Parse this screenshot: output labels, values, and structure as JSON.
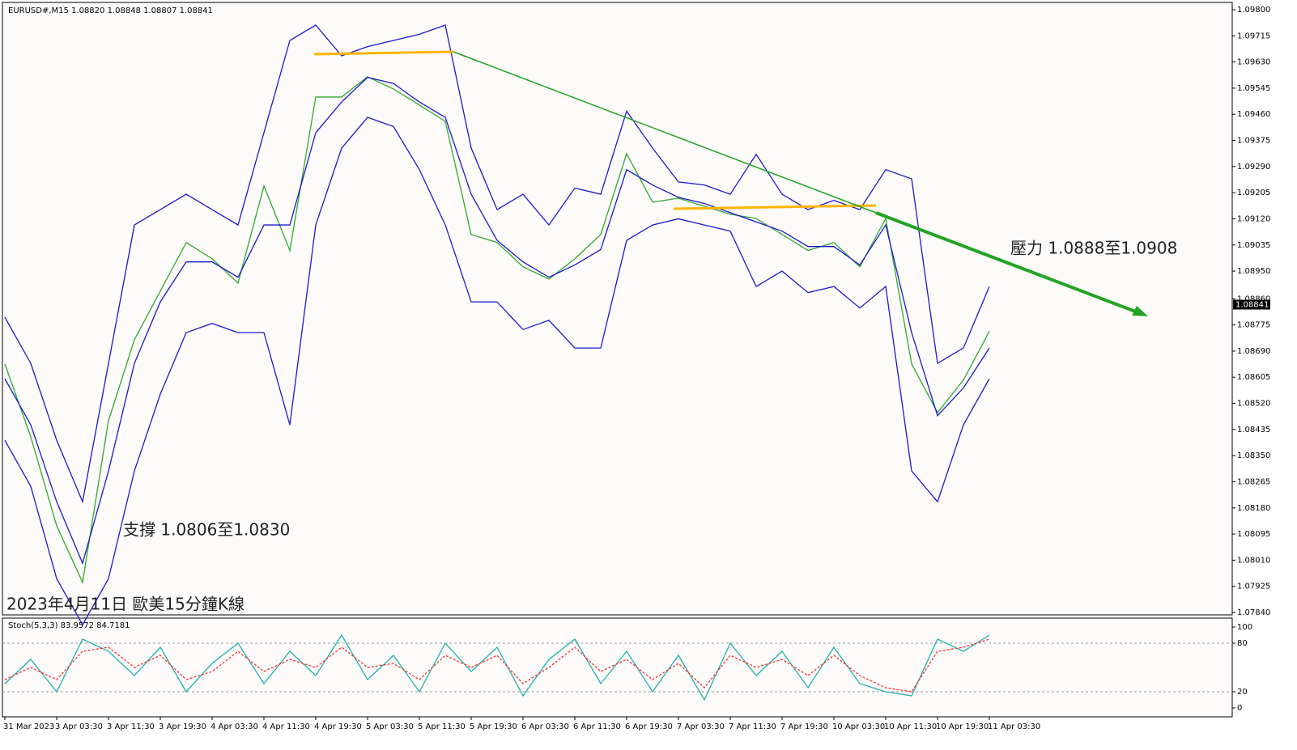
{
  "chart_data": [
    {
      "type": "line",
      "title": "EURUSD#,M15  1.08820 1.08848 1.08807 1.08841",
      "x": [
        0,
        16,
        32,
        48,
        64,
        80,
        96,
        112,
        128,
        144,
        160,
        176,
        192,
        208,
        224,
        240,
        256,
        272,
        288,
        304,
        320,
        336,
        352,
        368,
        384,
        400,
        416,
        432,
        448,
        464,
        480,
        496,
        512,
        528,
        544,
        560,
        576,
        592,
        608
      ],
      "xlim": [
        0,
        758
      ],
      "xticks": [
        {
          "value": 0,
          "label": "31 Mar 2023"
        },
        {
          "value": 32,
          "label": "3 Apr 03:30"
        },
        {
          "value": 64,
          "label": "3 Apr 11:30"
        },
        {
          "value": 96,
          "label": "3 Apr 19:30"
        },
        {
          "value": 128,
          "label": "4 Apr 03:30"
        },
        {
          "value": 160,
          "label": "4 Apr 11:30"
        },
        {
          "value": 192,
          "label": "4 Apr 19:30"
        },
        {
          "value": 224,
          "label": "5 Apr 03:30"
        },
        {
          "value": 256,
          "label": "5 Apr 11:30"
        },
        {
          "value": 288,
          "label": "5 Apr 19:30"
        },
        {
          "value": 320,
          "label": "6 Apr 03:30"
        },
        {
          "value": 352,
          "label": "6 Apr 11:30"
        },
        {
          "value": 384,
          "label": "6 Apr 19:30"
        },
        {
          "value": 416,
          "label": "7 Apr 03:30"
        },
        {
          "value": 448,
          "label": "7 Apr 11:30"
        },
        {
          "value": 480,
          "label": "7 Apr 19:30"
        },
        {
          "value": 512,
          "label": "10 Apr 03:30"
        },
        {
          "value": 544,
          "label": "10 Apr 11:30"
        },
        {
          "value": 576,
          "label": "10 Apr 19:30"
        },
        {
          "value": 608,
          "label": "11 Apr 03:30"
        }
      ],
      "ylim": [
        1.0784,
        1.098
      ],
      "yticks": [
        {
          "value": 1.098,
          "label": "1.09800"
        },
        {
          "value": 1.09715,
          "label": "1.09715"
        },
        {
          "value": 1.0963,
          "label": "1.09630"
        },
        {
          "value": 1.09545,
          "label": "1.09545"
        },
        {
          "value": 1.0946,
          "label": "1.09460"
        },
        {
          "value": 1.09375,
          "label": "1.09375"
        },
        {
          "value": 1.0929,
          "label": "1.09290"
        },
        {
          "value": 1.09205,
          "label": "1.09205"
        },
        {
          "value": 1.0912,
          "label": "1.09120"
        },
        {
          "value": 1.09035,
          "label": "1.09035"
        },
        {
          "value": 1.0895,
          "label": "1.08950"
        },
        {
          "value": 1.0886,
          "label": "1.08860"
        },
        {
          "value": 1.08775,
          "label": "1.08775"
        },
        {
          "value": 1.0869,
          "label": "1.08690"
        },
        {
          "value": 1.08605,
          "label": "1.08605"
        },
        {
          "value": 1.0852,
          "label": "1.08520"
        },
        {
          "value": 1.08435,
          "label": "1.08435"
        },
        {
          "value": 1.0835,
          "label": "1.08350"
        },
        {
          "value": 1.08265,
          "label": "1.08265"
        },
        {
          "value": 1.0818,
          "label": "1.08180"
        },
        {
          "value": 1.08095,
          "label": "1.08095"
        },
        {
          "value": 1.0801,
          "label": "1.08010"
        },
        {
          "value": 1.07925,
          "label": "1.07925"
        },
        {
          "value": 1.0784,
          "label": "1.07840"
        }
      ],
      "last_price": 1.08841,
      "series": [
        {
          "name": "Close",
          "color": "#2ea82e",
          "values": [
            1.08648,
            1.08411,
            1.08122,
            1.07938,
            1.08464,
            1.08727,
            1.08885,
            1.09043,
            1.0899,
            1.08911,
            1.09227,
            1.09017,
            1.09516,
            1.09516,
            1.09582,
            1.09542,
            1.0949,
            1.09437,
            1.09069,
            1.09043,
            1.08964,
            1.08924,
            1.0899,
            1.09069,
            1.09332,
            1.09174,
            1.09187,
            1.09161,
            1.09135,
            1.09121,
            1.09069,
            1.09017,
            1.09043,
            1.08964,
            1.09121,
            1.08648,
            1.0849,
            1.08596,
            1.08754
          ]
        },
        {
          "name": "Upper",
          "color": "#1a1acc",
          "values": [
            1.088,
            1.0865,
            1.084,
            1.082,
            1.0865,
            1.091,
            1.0915,
            1.092,
            1.0915,
            1.091,
            1.094,
            1.097,
            1.0975,
            1.0965,
            1.0968,
            1.097,
            1.0972,
            1.0975,
            1.0935,
            1.0915,
            1.092,
            1.091,
            1.0922,
            1.092,
            1.0947,
            1.0935,
            1.0924,
            1.0923,
            1.092,
            1.0933,
            1.092,
            1.0915,
            1.0918,
            1.0915,
            1.0928,
            1.0925,
            1.0865,
            1.087,
            1.089
          ]
        },
        {
          "name": "Middle",
          "color": "#1a1acc",
          "values": [
            1.086,
            1.0845,
            1.082,
            1.08,
            1.083,
            1.0865,
            1.0885,
            1.0898,
            1.0898,
            1.0893,
            1.091,
            1.091,
            1.094,
            1.095,
            1.0958,
            1.0956,
            1.095,
            1.0945,
            1.092,
            1.0905,
            1.0898,
            1.0893,
            1.0897,
            1.0902,
            1.0928,
            1.0923,
            1.0919,
            1.0917,
            1.0914,
            1.0911,
            1.0908,
            1.0903,
            1.0903,
            1.0897,
            1.091,
            1.0875,
            1.0848,
            1.0857,
            1.087
          ]
        },
        {
          "name": "Lower",
          "color": "#1a1acc",
          "values": [
            1.084,
            1.0825,
            1.0795,
            1.078,
            1.0795,
            1.083,
            1.0855,
            1.0875,
            1.0878,
            1.0875,
            1.0875,
            1.0845,
            1.091,
            1.0935,
            1.0945,
            1.0942,
            1.0928,
            1.091,
            1.0885,
            1.0885,
            1.0876,
            1.0879,
            1.087,
            1.087,
            1.0905,
            1.091,
            1.0912,
            1.091,
            1.0908,
            1.089,
            1.0895,
            1.0888,
            1.089,
            1.0883,
            1.089,
            1.083,
            1.082,
            1.0845,
            1.086
          ]
        }
      ],
      "annotations": [
        "壓力 1.0888至1.0908",
        "支撐 1.0806至1.0830",
        "2023年4月11日 歐美15分鐘K線"
      ]
    },
    {
      "type": "line",
      "title": "Stoch(5,3,3) 83.9572 84.7181",
      "x": [
        0,
        16,
        32,
        48,
        64,
        80,
        96,
        112,
        128,
        144,
        160,
        176,
        192,
        208,
        224,
        240,
        256,
        272,
        288,
        304,
        320,
        336,
        352,
        368,
        384,
        400,
        416,
        432,
        448,
        464,
        480,
        496,
        512,
        528,
        544,
        560,
        576,
        592,
        608
      ],
      "xlim": [
        0,
        758
      ],
      "ylim": [
        -5,
        105
      ],
      "yticks": [
        0,
        20,
        80,
        100
      ],
      "levels": [
        20,
        80
      ],
      "series": [
        {
          "name": "%K",
          "color": "#20b2aa",
          "values": [
            30,
            60,
            20,
            85,
            70,
            40,
            75,
            20,
            55,
            80,
            30,
            70,
            40,
            90,
            35,
            65,
            20,
            80,
            45,
            75,
            15,
            60,
            85,
            30,
            70,
            20,
            65,
            10,
            80,
            40,
            70,
            25,
            75,
            30,
            20,
            15,
            85,
            70,
            90
          ]
        },
        {
          "name": "%D",
          "color": "#ff3030",
          "values": [
            35,
            50,
            35,
            70,
            75,
            50,
            65,
            35,
            45,
            70,
            45,
            60,
            50,
            75,
            50,
            55,
            35,
            65,
            50,
            65,
            30,
            50,
            75,
            45,
            60,
            35,
            55,
            25,
            65,
            50,
            60,
            40,
            65,
            40,
            25,
            20,
            70,
            75,
            85
          ]
        }
      ]
    }
  ]
}
